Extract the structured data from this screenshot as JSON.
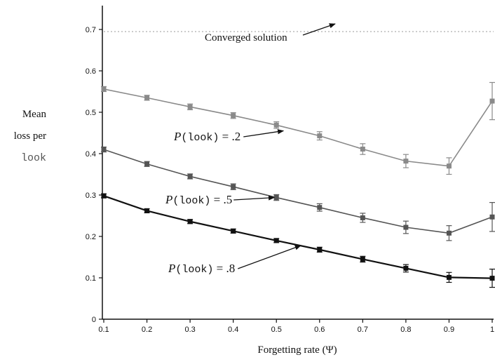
{
  "chart_data": {
    "type": "line",
    "xlabel": "Forgetting rate (Ψ)",
    "ylabel_lines": [
      "Mean",
      "loss per",
      "look"
    ],
    "x": [
      0.1,
      0.2,
      0.3,
      0.4,
      0.5,
      0.6,
      0.7,
      0.8,
      0.9,
      1
    ],
    "x_tick_labels": [
      "0.1",
      "0.2",
      "0.3",
      "0.4",
      "0.5",
      "0.6",
      "0.7",
      "0.8",
      "0.9",
      "1"
    ],
    "xlim": [
      0.1,
      1
    ],
    "y_ticks": [
      0,
      0.1,
      0.2,
      0.3,
      0.4,
      0.5,
      0.6,
      0.7
    ],
    "y_tick_labels": [
      "0",
      "0.1",
      "0.2",
      "0.3",
      "0.4",
      "0.5",
      "0.6",
      "0.7"
    ],
    "ylim": [
      0,
      0.75
    ],
    "grid": false,
    "reference_line": {
      "y": 0.695,
      "style": "dotted"
    },
    "series": [
      {
        "label_prefix": "P",
        "label_mono": "(look)",
        "label_suffix": " = .2",
        "color": "#8a8a8a",
        "values": [
          0.556,
          0.535,
          0.513,
          0.492,
          0.469,
          0.443,
          0.411,
          0.382,
          0.37,
          0.527
        ],
        "errors": [
          0.006,
          0.006,
          0.007,
          0.007,
          0.008,
          0.01,
          0.013,
          0.016,
          0.02,
          0.045
        ]
      },
      {
        "label_prefix": "P",
        "label_mono": "(look)",
        "label_suffix": " = .5",
        "color": "#555555",
        "values": [
          0.41,
          0.375,
          0.345,
          0.32,
          0.294,
          0.27,
          0.245,
          0.222,
          0.208,
          0.247
        ],
        "errors": [
          0.006,
          0.006,
          0.006,
          0.007,
          0.007,
          0.009,
          0.011,
          0.015,
          0.018,
          0.035
        ]
      },
      {
        "label_prefix": "P",
        "label_mono": "(look)",
        "label_suffix": " = .8",
        "color": "#111111",
        "values": [
          0.298,
          0.262,
          0.236,
          0.213,
          0.19,
          0.168,
          0.145,
          0.123,
          0.101,
          0.099
        ],
        "errors": [
          0.005,
          0.005,
          0.005,
          0.005,
          0.005,
          0.006,
          0.007,
          0.009,
          0.012,
          0.022
        ]
      }
    ],
    "annotations": [
      {
        "text": "Converged solution",
        "points_to": "reference_line"
      },
      {
        "series_index": 0,
        "points_to_x": 0.5
      },
      {
        "series_index": 1,
        "points_to_x": 0.5
      },
      {
        "series_index": 2,
        "points_to_x": 0.55
      }
    ]
  }
}
